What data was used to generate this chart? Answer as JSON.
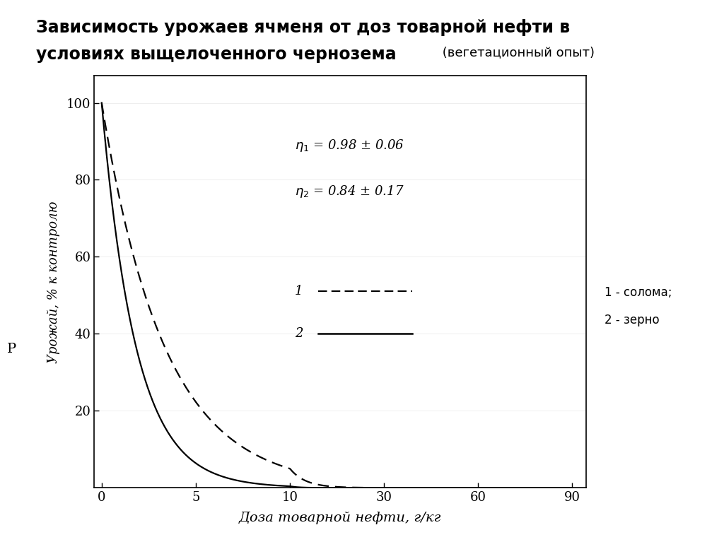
{
  "title_bold_line1": "Зависимость урожаев ячменя от доз товарной нефти в",
  "title_bold_line2": "условиях выщелоченного чернозема",
  "title_normal": " (вегетационный опыт)",
  "xlabel": "Доза товарной нефти, г/кг",
  "ylabel": "Урожай, % к контролю",
  "xtick_vals": [
    0,
    5,
    10,
    30,
    60,
    90
  ],
  "ytick_vals": [
    20,
    40,
    60,
    80,
    100
  ],
  "eq1": "$\\eta_1$ = 0.98 ± 0.06",
  "eq2": "$\\eta_2$ = 0.84 ± 0.17",
  "legend_label_1": "1 - солома;",
  "legend_label_2": "2 - зерно",
  "bg_color": "#ffffff",
  "curve_solid_decay": 0.55,
  "curve_dashed_decay": 0.3,
  "p_label": "Р"
}
